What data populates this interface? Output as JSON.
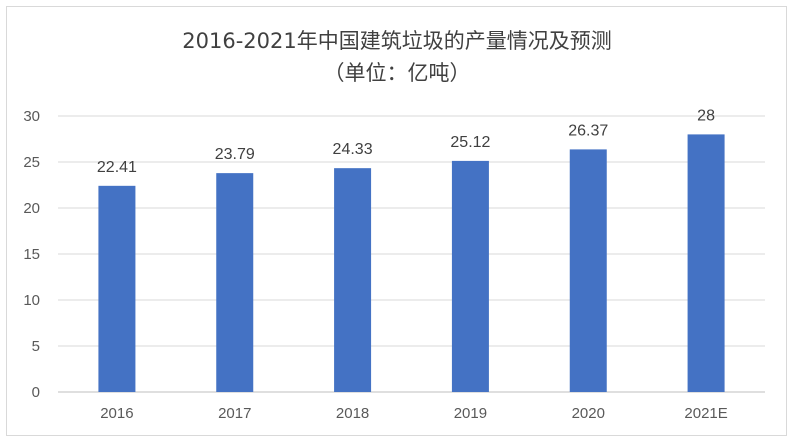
{
  "chart_data": {
    "type": "bar",
    "title": "2016-2021年中国建筑垃圾的产量情况及预测",
    "subtitle": "（单位：亿吨）",
    "categories": [
      "2016",
      "2017",
      "2018",
      "2019",
      "2020",
      "2021E"
    ],
    "values": [
      22.41,
      23.79,
      24.33,
      25.12,
      26.37,
      28
    ],
    "data_labels": [
      "22.41",
      "23.79",
      "24.33",
      "25.12",
      "26.37",
      "28"
    ],
    "y_ticks": [
      "0",
      "5",
      "10",
      "15",
      "20",
      "25",
      "30"
    ],
    "ylim": [
      0,
      30
    ],
    "xlabel": "",
    "ylabel": "",
    "grid": true,
    "legend": "none",
    "bar_color": "#4472C4"
  }
}
